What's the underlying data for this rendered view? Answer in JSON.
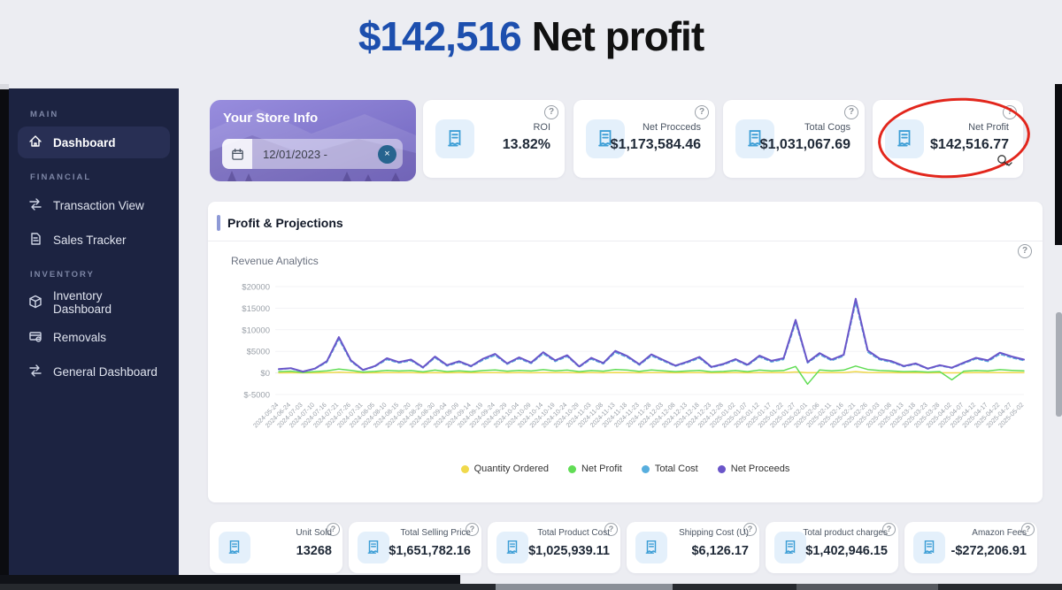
{
  "header": {
    "amount": "$142,516",
    "label": "Net profit"
  },
  "sidebar": {
    "sections": [
      {
        "title": "MAIN",
        "items": [
          {
            "label": "Dashboard",
            "icon": "home-icon"
          }
        ]
      },
      {
        "title": "FINANCIAL",
        "items": [
          {
            "label": "Transaction View",
            "icon": "swap-icon"
          },
          {
            "label": "Sales Tracker",
            "icon": "document-icon"
          }
        ]
      },
      {
        "title": "INVENTORY",
        "items": [
          {
            "label": "Inventory Dashboard",
            "icon": "cube-icon"
          },
          {
            "label": "Removals",
            "icon": "tray-icon"
          },
          {
            "label": "General Dashboard",
            "icon": "swap-icon"
          }
        ]
      }
    ]
  },
  "store_card": {
    "title": "Your Store Info",
    "date_value": "12/01/2023 -"
  },
  "top_stats": [
    {
      "label": "ROI",
      "value": "13.82%"
    },
    {
      "label": "Net Procceds",
      "value": "$1,173,584.46"
    },
    {
      "label": "Total Cogs",
      "value": "$1,031,067.69"
    },
    {
      "label": "Net Profit",
      "value": "$142,516.77"
    }
  ],
  "chart_data": {
    "type": "line",
    "title": "Profit & Projections",
    "subtitle": "Revenue Analytics",
    "grid": true,
    "legend_position": "bottom",
    "ylim": [
      -5000,
      20000
    ],
    "y_ticks": [
      "$20000",
      "$15000",
      "$10000",
      "$5000",
      "$0",
      "$-5000"
    ],
    "x": [
      "2024-05-24",
      "2024-06-24",
      "2024-07-03",
      "2024-07-10",
      "2024-07-16",
      "2024-07-21",
      "2024-07-26",
      "2024-07-31",
      "2024-08-05",
      "2024-08-10",
      "2024-08-15",
      "2024-08-20",
      "2024-08-25",
      "2024-08-30",
      "2024-09-04",
      "2024-09-09",
      "2024-09-14",
      "2024-09-19",
      "2024-09-24",
      "2024-09-29",
      "2024-10-04",
      "2024-10-09",
      "2024-10-14",
      "2024-10-19",
      "2024-10-24",
      "2024-10-29",
      "2024-11-03",
      "2024-11-08",
      "2024-11-13",
      "2024-11-18",
      "2024-11-23",
      "2024-11-28",
      "2024-12-03",
      "2024-12-08",
      "2024-12-13",
      "2024-12-18",
      "2024-12-23",
      "2024-12-28",
      "2025-01-02",
      "2025-01-07",
      "2025-01-12",
      "2025-01-17",
      "2025-01-22",
      "2025-01-27",
      "2025-02-01",
      "2025-02-06",
      "2025-02-11",
      "2025-02-16",
      "2025-02-21",
      "2025-02-26",
      "2025-03-03",
      "2025-03-08",
      "2025-03-13",
      "2025-03-18",
      "2025-03-23",
      "2025-03-28",
      "2025-04-02",
      "2025-04-07",
      "2025-04-12",
      "2025-04-17",
      "2025-04-22",
      "2025-04-27",
      "2025-05-02"
    ],
    "series": [
      {
        "name": "Quantity Ordered",
        "color": "#f0d94b",
        "dashed": false,
        "values": [
          30,
          35,
          12,
          30,
          60,
          160,
          60,
          20,
          40,
          70,
          55,
          65,
          30,
          75,
          40,
          60,
          35,
          65,
          85,
          45,
          70,
          50,
          90,
          55,
          80,
          35,
          65,
          45,
          95,
          75,
          40,
          80,
          60,
          35,
          55,
          70,
          30,
          45,
          65,
          40,
          75,
          55,
          65,
          220,
          50,
          85,
          60,
          80,
          310,
          95,
          65,
          55,
          35,
          45,
          25,
          40,
          30,
          50,
          65,
          55,
          90,
          75,
          60
        ]
      },
      {
        "name": "Net Profit",
        "color": "#61dd55",
        "dashed": false,
        "values": [
          300,
          400,
          100,
          300,
          500,
          900,
          600,
          200,
          350,
          600,
          450,
          550,
          250,
          650,
          300,
          500,
          300,
          550,
          700,
          400,
          600,
          450,
          750,
          500,
          650,
          300,
          550,
          400,
          800,
          650,
          350,
          700,
          500,
          300,
          450,
          600,
          250,
          350,
          550,
          300,
          650,
          450,
          550,
          1500,
          -2600,
          700,
          500,
          650,
          1600,
          800,
          550,
          450,
          300,
          350,
          200,
          300,
          -1600,
          400,
          550,
          450,
          750,
          600,
          500
        ]
      },
      {
        "name": "Total Cost",
        "color": "#57aede",
        "dashed": true,
        "values": [
          800,
          1000,
          250,
          900,
          2450,
          7800,
          2650,
          600,
          1450,
          3100,
          2300,
          2850,
          1150,
          3500,
          1600,
          2450,
          1450,
          3000,
          4050,
          2000,
          3300,
          2200,
          4450,
          2650,
          3800,
          1350,
          3200,
          2100,
          4750,
          3600,
          1800,
          3950,
          2750,
          1550,
          2400,
          3400,
          1250,
          1900,
          2950,
          1700,
          3700,
          2550,
          3100,
          11600,
          2300,
          4250,
          2850,
          3900,
          16300,
          4800,
          3050,
          2450,
          1450,
          2000,
          900,
          1650,
          1100,
          2200,
          3250,
          2650,
          4350,
          3500,
          2850
        ]
      },
      {
        "name": "Net Proceeds",
        "color": "#6a55c9",
        "dashed": false,
        "values": [
          900,
          1100,
          300,
          1000,
          2700,
          8300,
          2900,
          700,
          1600,
          3400,
          2500,
          3100,
          1300,
          3800,
          1800,
          2700,
          1600,
          3300,
          4400,
          2200,
          3600,
          2400,
          4800,
          2900,
          4100,
          1500,
          3500,
          2300,
          5100,
          3900,
          2000,
          4300,
          3000,
          1700,
          2600,
          3700,
          1400,
          2100,
          3200,
          1900,
          4000,
          2800,
          3400,
          12300,
          2500,
          4600,
          3100,
          4200,
          17200,
          5200,
          3300,
          2700,
          1600,
          2200,
          1000,
          1800,
          1200,
          2400,
          3500,
          2900,
          4700,
          3800,
          3100
        ]
      }
    ]
  },
  "bottom_stats": [
    {
      "label": "Unit Sold",
      "value": "13268"
    },
    {
      "label": "Total Selling Price",
      "value": "$1,651,782.16"
    },
    {
      "label": "Total Product Cost",
      "value": "$1,025,939.11"
    },
    {
      "label": "Shipping Cost (U)",
      "value": "$6,126.17"
    },
    {
      "label": "Total product charges",
      "value": "$1,402,946.15"
    },
    {
      "label": "Amazon Fees",
      "value": "-$272,206.91"
    }
  ],
  "misc": {
    "help_glyph": "?",
    "clear_glyph": "×"
  },
  "colors": {
    "accent_blue": "#1d4fae",
    "annotation_red": "#e2261c",
    "sidebar_bg": "#1c2341",
    "icon_blue": "#3d9ed6"
  }
}
